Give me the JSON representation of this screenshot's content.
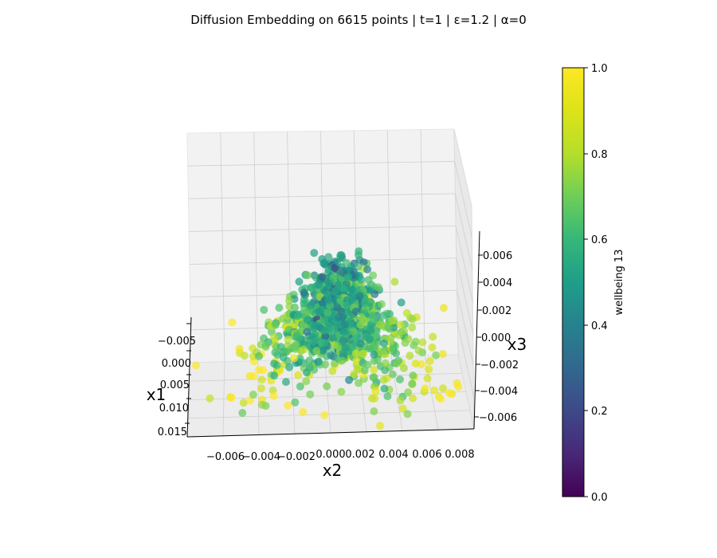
{
  "chart_data": {
    "type": "scatter",
    "title": "Diffusion Embedding on 6615 points | t=1 | ε=1.2 | α=0",
    "xlabel": "x1",
    "ylabel": "x2",
    "zlabel": "x3",
    "x1_ticks": [
      "−0.005",
      "0.000",
      "0.005",
      "0.010",
      "0.015"
    ],
    "x2_ticks": [
      "−0.006",
      "−0.004",
      "−0.002",
      "0.000",
      "0.002",
      "0.004",
      "0.006",
      "0.008"
    ],
    "x3_ticks": [
      "0.006",
      "0.004",
      "0.002",
      "0.000",
      "−0.002",
      "−0.004",
      "−0.006"
    ],
    "xlim": [
      -0.005,
      0.015
    ],
    "ylim": [
      -0.007,
      0.009
    ],
    "zlim": [
      -0.007,
      0.007
    ],
    "colorbar": {
      "label": "wellbeing 13",
      "ticks": [
        "0.0",
        "0.2",
        "0.4",
        "0.6",
        "0.8",
        "1.0"
      ],
      "range": [
        0.0,
        1.0
      ],
      "colormap": "viridis"
    },
    "grid": true,
    "n_points": 6615,
    "rendered_sample_points": 1100
  }
}
